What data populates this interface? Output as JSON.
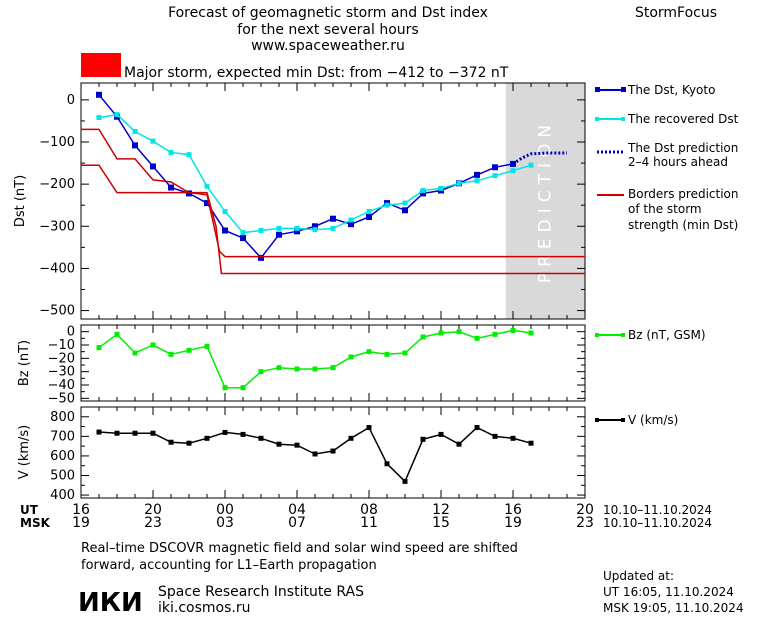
{
  "header": {
    "title_lines": [
      "Forecast of geomagnetic storm and Dst index",
      "for the next several hours",
      "www.spaceweather.ru"
    ],
    "brand": "StormFocus",
    "storm_text": "Major storm, expected min Dst: from −412 to −372 nT",
    "storm_color": "#ff0000"
  },
  "prediction_label": "PREDICTION",
  "legend": {
    "dst_kyoto": "The Dst, Kyoto",
    "dst_recovered": "The recovered Dst",
    "dst_pred_1": "The Dst prediction",
    "dst_pred_2": "2–4 hours ahead",
    "borders_1": "Borders prediction",
    "borders_2": "of the storm",
    "borders_3": "strength (min Dst)",
    "bz": "Bz (nT, GSM)",
    "v": "V (km/s)"
  },
  "time_axis": {
    "ut_label": "UT",
    "msk_label": "MSK",
    "ut_ticks": [
      "16",
      "20",
      "00",
      "04",
      "08",
      "12",
      "16",
      "20"
    ],
    "msk_ticks": [
      "19",
      "23",
      "03",
      "07",
      "11",
      "15",
      "19",
      "23"
    ],
    "ut_date_range": "10.10–11.10.2024",
    "msk_date_range": "10.10–11.10.2024"
  },
  "footer": {
    "note_line1": "Real–time DSCOVR magnetic field and solar wind speed are shifted",
    "note_line2": "forward, accounting for L1–Earth propagation",
    "logo": "ИКИ",
    "institute": "Space Research Institute RAS",
    "site": "iki.cosmos.ru",
    "updated_label": "Updated at:",
    "updated_ut": "UT   16:05, 11.10.2024",
    "updated_msk": "MSK 19:05, 11.10.2024"
  },
  "chart_data": [
    {
      "type": "line",
      "ylabel": "Dst (nT)",
      "ylim": [
        -520,
        40
      ],
      "yticks": [
        0,
        -100,
        -200,
        -300,
        -400,
        -500
      ],
      "yticklabels": [
        "0",
        "−100",
        "−200",
        "−300",
        "−400",
        "−500"
      ],
      "xlim": [
        16,
        44
      ],
      "prediction_region": [
        39.6,
        44
      ],
      "series": [
        {
          "name": "The Dst, Kyoto",
          "color": "#0000cc",
          "x": [
            17,
            18,
            19,
            20,
            21,
            22,
            23,
            24,
            25,
            26,
            27,
            28,
            29,
            30,
            31,
            32,
            33,
            34,
            35,
            36,
            37,
            38,
            39,
            40
          ],
          "y": [
            12,
            -40,
            -108,
            -158,
            -208,
            -222,
            -245,
            -310,
            -328,
            -375,
            -320,
            -312,
            -300,
            -282,
            -295,
            -278,
            -245,
            -262,
            -222,
            -215,
            -198,
            -178,
            -160,
            -152
          ]
        },
        {
          "name": "The recovered Dst",
          "color": "#00e5e5",
          "x": [
            17,
            18,
            19,
            20,
            21,
            22,
            23,
            24,
            25,
            26,
            27,
            28,
            29,
            30,
            31,
            32,
            33,
            34,
            35,
            36,
            37,
            38,
            39,
            40,
            41
          ],
          "y": [
            -42,
            -35,
            -75,
            -98,
            -125,
            -130,
            -205,
            -265,
            -315,
            -310,
            -305,
            -305,
            -308,
            -305,
            -285,
            -265,
            -250,
            -245,
            -215,
            -210,
            -198,
            -192,
            -180,
            -168,
            -155
          ]
        },
        {
          "name": "The Dst prediction 2–4 hours ahead",
          "color": "#0000cc",
          "dashed": true,
          "x": [
            40,
            40.5,
            41,
            42,
            43
          ],
          "y": [
            -152,
            -138,
            -128,
            -126,
            -126
          ]
        },
        {
          "name": "Borders prediction upper",
          "color": "#cc0000",
          "x": [
            16,
            17,
            18,
            19,
            20,
            21,
            22,
            23,
            23.7,
            24,
            44
          ],
          "y": [
            -70,
            -70,
            -140,
            -140,
            -190,
            -195,
            -220,
            -225,
            -360,
            -372,
            -372
          ]
        },
        {
          "name": "Borders prediction lower",
          "color": "#cc0000",
          "x": [
            16,
            17,
            18,
            19,
            20,
            21,
            22,
            23,
            23.5,
            23.8,
            44
          ],
          "y": [
            -155,
            -155,
            -220,
            -220,
            -220,
            -220,
            -220,
            -220,
            -300,
            -412,
            -412
          ]
        }
      ]
    },
    {
      "type": "line",
      "ylabel": "Bz (nT)",
      "ylim": [
        -52,
        5
      ],
      "yticks": [
        0,
        -10,
        -20,
        -30,
        -40,
        -50
      ],
      "yticklabels": [
        "0",
        "−10",
        "−20",
        "−30",
        "−40",
        "−50"
      ],
      "xlim": [
        16,
        44
      ],
      "series": [
        {
          "name": "Bz (nT, GSM)",
          "color": "#00ee00",
          "x": [
            17,
            18,
            19,
            20,
            21,
            22,
            23,
            24,
            25,
            26,
            27,
            28,
            29,
            30,
            31,
            32,
            33,
            34,
            35,
            36,
            37,
            38,
            39,
            40,
            41
          ],
          "y": [
            -12,
            -2,
            -16,
            -10,
            -17,
            -14,
            -11,
            -42,
            -42,
            -30,
            -27,
            -28,
            -28,
            -27,
            -19,
            -15,
            -17,
            -16,
            -4,
            -1,
            0,
            -5,
            -2,
            1,
            -1
          ]
        }
      ]
    },
    {
      "type": "line",
      "ylabel": "V (km/s)",
      "ylim": [
        385,
        850
      ],
      "yticks": [
        800,
        700,
        600,
        500,
        400
      ],
      "yticklabels": [
        "800",
        "700",
        "600",
        "500",
        "400"
      ],
      "xlim": [
        16,
        44
      ],
      "series": [
        {
          "name": "V (km/s)",
          "color": "#000000",
          "x": [
            17,
            18,
            19,
            20,
            21,
            22,
            23,
            24,
            25,
            26,
            27,
            28,
            29,
            30,
            31,
            32,
            33,
            34,
            35,
            36,
            37,
            38,
            39,
            40,
            41
          ],
          "y": [
            722,
            716,
            716,
            716,
            670,
            665,
            690,
            720,
            710,
            690,
            660,
            655,
            610,
            625,
            690,
            745,
            560,
            470,
            685,
            710,
            660,
            745,
            700,
            690,
            665
          ]
        }
      ]
    }
  ]
}
